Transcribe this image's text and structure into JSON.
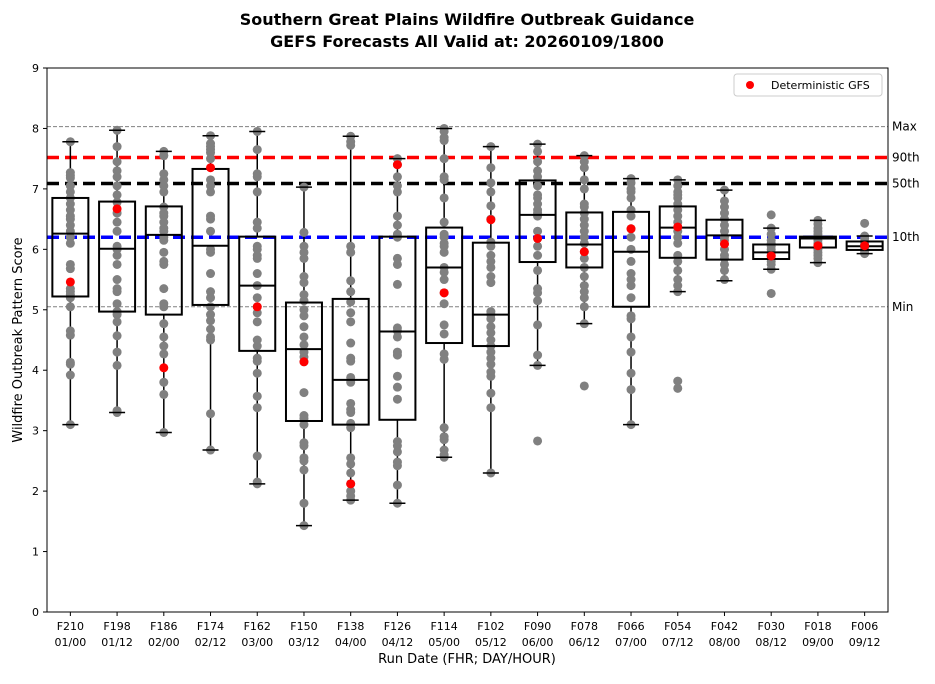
{
  "chart_data": {
    "type": "box",
    "title": "Southern Great Plains Wildfire Outbreak Guidance",
    "subtitle": "GEFS Forecasts All Valid at: 20260109/1800",
    "xlabel": "Run Date (FHR; DAY/HOUR)",
    "ylabel": "Wildfire Outbreak Pattern Score",
    "ylim": [
      0,
      9
    ],
    "yticks": [
      "0",
      "1",
      "2",
      "3",
      "4",
      "5",
      "6",
      "7",
      "8",
      "9"
    ],
    "legend": {
      "position": "top-right",
      "entries": [
        "Deterministic GFS"
      ]
    },
    "reference_lines": [
      {
        "label": "Max",
        "value": 8.03,
        "color": "#808080",
        "style": "thin-dashed"
      },
      {
        "label": "90th",
        "value": 7.52,
        "color": "#ff0000",
        "style": "thick-dashed"
      },
      {
        "label": "50th",
        "value": 7.09,
        "color": "#000000",
        "style": "thick-dashed"
      },
      {
        "label": "10th",
        "value": 6.2,
        "color": "#0000ff",
        "style": "thick-dashed"
      },
      {
        "label": "Min",
        "value": 5.05,
        "color": "#808080",
        "style": "thin-dashed"
      }
    ],
    "colors": {
      "members": "#808080",
      "deterministic": "#ff0000",
      "box": "#000000"
    },
    "categories": [
      {
        "fhr": "F210",
        "day": "01/00",
        "whislo": 3.1,
        "q1": 5.22,
        "med": 6.26,
        "q3": 6.85,
        "whishi": 7.78,
        "det": 5.46,
        "members": [
          7.78,
          7.27,
          7.22,
          7.18,
          7.05,
          6.95,
          6.85,
          6.75,
          6.65,
          6.55,
          6.5,
          6.4,
          6.3,
          6.2,
          6.1,
          5.75,
          5.68,
          5.35,
          5.3,
          5.25,
          5.2,
          5.05,
          4.65,
          4.58,
          4.13,
          4.1,
          3.92,
          3.1
        ]
      },
      {
        "fhr": "F198",
        "day": "01/12",
        "whislo": 3.3,
        "q1": 4.97,
        "med": 6.01,
        "q3": 6.79,
        "whishi": 7.97,
        "det": 6.67,
        "members": [
          7.97,
          7.7,
          7.45,
          7.3,
          7.2,
          7.05,
          6.9,
          6.78,
          6.6,
          6.45,
          6.3,
          6.05,
          6.0,
          5.9,
          5.75,
          5.5,
          5.35,
          5.3,
          5.1,
          4.97,
          4.92,
          4.8,
          4.57,
          4.3,
          4.08,
          3.33,
          3.3
        ]
      },
      {
        "fhr": "F186",
        "day": "02/00",
        "whislo": 2.97,
        "q1": 4.92,
        "med": 6.24,
        "q3": 6.71,
        "whishi": 7.62,
        "det": 4.04,
        "members": [
          7.62,
          7.55,
          7.25,
          7.15,
          7.05,
          6.95,
          6.7,
          6.6,
          6.55,
          6.45,
          6.35,
          6.3,
          6.2,
          6.15,
          5.95,
          5.8,
          5.75,
          5.35,
          5.1,
          5.05,
          4.77,
          4.55,
          4.4,
          4.27,
          3.8,
          3.6,
          2.97
        ]
      },
      {
        "fhr": "F174",
        "day": "02/12",
        "whislo": 2.68,
        "q1": 5.08,
        "med": 6.06,
        "q3": 7.33,
        "whishi": 7.88,
        "det": 7.35,
        "members": [
          7.88,
          7.75,
          7.7,
          7.65,
          7.6,
          7.5,
          7.15,
          7.05,
          6.95,
          6.55,
          6.5,
          6.3,
          6.0,
          5.95,
          5.6,
          5.3,
          5.2,
          5.05,
          4.92,
          4.82,
          4.68,
          4.55,
          4.5,
          3.28,
          2.68
        ]
      },
      {
        "fhr": "F162",
        "day": "03/00",
        "whislo": 2.12,
        "q1": 4.32,
        "med": 5.4,
        "q3": 6.21,
        "whishi": 7.95,
        "det": 5.05,
        "members": [
          7.95,
          7.65,
          7.25,
          7.2,
          6.95,
          6.45,
          6.35,
          6.05,
          6.0,
          5.9,
          5.85,
          5.6,
          5.4,
          5.2,
          5.05,
          4.95,
          4.8,
          4.5,
          4.4,
          4.2,
          4.15,
          3.95,
          3.57,
          3.38,
          2.58,
          2.15,
          2.12
        ]
      },
      {
        "fhr": "F150",
        "day": "03/12",
        "whislo": 1.43,
        "q1": 3.16,
        "med": 4.35,
        "q3": 5.12,
        "whishi": 7.03,
        "det": 4.14,
        "members": [
          7.03,
          6.28,
          6.05,
          5.95,
          5.85,
          5.55,
          5.45,
          5.25,
          5.15,
          5.0,
          4.9,
          4.72,
          4.55,
          4.42,
          4.3,
          4.22,
          4.14,
          3.63,
          3.25,
          3.2,
          3.1,
          2.8,
          2.75,
          2.55,
          2.5,
          2.35,
          1.8,
          1.43
        ]
      },
      {
        "fhr": "F138",
        "day": "04/00",
        "whislo": 1.85,
        "q1": 3.1,
        "med": 3.84,
        "q3": 5.18,
        "whishi": 7.87,
        "det": 2.12,
        "members": [
          7.87,
          7.78,
          7.72,
          6.05,
          5.95,
          5.48,
          5.3,
          5.13,
          4.95,
          4.8,
          4.45,
          4.2,
          4.15,
          3.88,
          3.8,
          3.45,
          3.35,
          3.3,
          3.12,
          3.05,
          2.55,
          2.45,
          2.3,
          2.12,
          2.0,
          1.92,
          1.85
        ]
      },
      {
        "fhr": "F126",
        "day": "04/12",
        "whislo": 1.8,
        "q1": 3.18,
        "med": 4.64,
        "q3": 6.21,
        "whishi": 7.5,
        "det": 7.4,
        "members": [
          7.5,
          7.4,
          7.2,
          7.05,
          6.95,
          6.55,
          6.4,
          6.25,
          6.2,
          5.85,
          5.75,
          5.42,
          4.7,
          4.65,
          4.55,
          4.3,
          4.25,
          3.9,
          3.72,
          3.52,
          2.82,
          2.75,
          2.65,
          2.48,
          2.42,
          2.1,
          1.8
        ]
      },
      {
        "fhr": "F114",
        "day": "05/00",
        "whislo": 2.56,
        "q1": 4.45,
        "med": 5.7,
        "q3": 6.36,
        "whishi": 8.0,
        "det": 5.28,
        "members": [
          8.0,
          7.95,
          7.85,
          7.8,
          7.5,
          7.2,
          7.15,
          6.85,
          6.45,
          6.25,
          6.2,
          6.1,
          6.05,
          5.95,
          5.7,
          5.62,
          5.5,
          5.28,
          5.1,
          4.75,
          4.6,
          4.27,
          4.18,
          3.05,
          2.9,
          2.85,
          2.68,
          2.6,
          2.56
        ]
      },
      {
        "fhr": "F102",
        "day": "05/12",
        "whislo": 2.3,
        "q1": 4.4,
        "med": 4.92,
        "q3": 6.11,
        "whishi": 7.7,
        "det": 6.49,
        "members": [
          7.7,
          7.35,
          7.1,
          6.95,
          6.72,
          6.5,
          6.12,
          6.05,
          5.9,
          5.8,
          5.7,
          5.55,
          5.45,
          4.97,
          4.92,
          4.85,
          4.72,
          4.62,
          4.5,
          4.4,
          4.3,
          4.2,
          4.1,
          3.97,
          3.9,
          3.62,
          3.38,
          2.3
        ]
      },
      {
        "fhr": "F090",
        "day": "06/00",
        "whislo": 4.08,
        "q1": 5.79,
        "med": 6.57,
        "q3": 7.14,
        "whishi": 7.74,
        "det": 6.18,
        "members": [
          7.74,
          7.62,
          7.45,
          7.3,
          7.2,
          7.05,
          6.9,
          6.85,
          6.75,
          6.65,
          6.6,
          6.55,
          6.3,
          6.18,
          6.05,
          5.9,
          5.65,
          5.35,
          5.28,
          5.15,
          4.75,
          4.25,
          4.08,
          2.83
        ]
      },
      {
        "fhr": "F078",
        "day": "06/12",
        "whislo": 4.77,
        "q1": 5.7,
        "med": 6.08,
        "q3": 6.61,
        "whishi": 7.55,
        "det": 5.96,
        "members": [
          7.55,
          7.45,
          7.35,
          7.15,
          7.0,
          6.75,
          6.7,
          6.6,
          6.5,
          6.4,
          6.3,
          6.2,
          6.1,
          5.96,
          5.85,
          5.7,
          5.55,
          5.4,
          5.3,
          5.2,
          5.05,
          4.77,
          3.74
        ]
      },
      {
        "fhr": "F066",
        "day": "07/00",
        "whislo": 3.1,
        "q1": 5.05,
        "med": 5.96,
        "q3": 6.62,
        "whishi": 7.17,
        "det": 6.34,
        "members": [
          7.17,
          7.1,
          7.0,
          6.95,
          6.85,
          6.65,
          6.55,
          6.34,
          6.2,
          6.0,
          5.8,
          5.6,
          5.5,
          5.4,
          5.2,
          4.9,
          4.85,
          4.55,
          4.3,
          3.95,
          3.68,
          3.1
        ]
      },
      {
        "fhr": "F054",
        "day": "07/12",
        "whislo": 5.3,
        "q1": 5.86,
        "med": 6.36,
        "q3": 6.71,
        "whishi": 7.15,
        "det": 6.37,
        "members": [
          7.15,
          7.05,
          6.95,
          6.9,
          6.85,
          6.75,
          6.65,
          6.55,
          6.45,
          6.37,
          6.3,
          6.2,
          6.1,
          5.9,
          5.8,
          5.65,
          5.5,
          5.4,
          5.3,
          3.82,
          3.7
        ]
      },
      {
        "fhr": "F042",
        "day": "08/00",
        "whislo": 5.48,
        "q1": 5.83,
        "med": 6.23,
        "q3": 6.49,
        "whishi": 6.98,
        "det": 6.09,
        "members": [
          6.98,
          6.8,
          6.7,
          6.6,
          6.5,
          6.4,
          6.3,
          6.2,
          6.15,
          6.09,
          6.0,
          5.9,
          5.85,
          5.75,
          5.65,
          5.5
        ]
      },
      {
        "fhr": "F030",
        "day": "08/12",
        "whislo": 5.67,
        "q1": 5.84,
        "med": 5.95,
        "q3": 6.08,
        "whishi": 6.35,
        "det": 5.89,
        "members": [
          6.57,
          6.35,
          6.25,
          6.15,
          6.1,
          6.05,
          6.0,
          5.95,
          5.89,
          5.85,
          5.8,
          5.75,
          5.67,
          5.27
        ]
      },
      {
        "fhr": "F018",
        "day": "09/00",
        "whislo": 5.78,
        "q1": 6.03,
        "med": 6.18,
        "q3": 6.21,
        "whishi": 6.48,
        "det": 6.06,
        "members": [
          6.48,
          6.42,
          6.35,
          6.3,
          6.25,
          6.2,
          6.15,
          6.1,
          6.06,
          6.0,
          5.95,
          5.9,
          5.85,
          5.78
        ]
      },
      {
        "fhr": "F006",
        "day": "09/12",
        "whislo": 5.93,
        "q1": 5.99,
        "med": 6.05,
        "q3": 6.13,
        "whishi": 6.22,
        "det": 6.06,
        "members": [
          6.43,
          6.22,
          6.18,
          6.12,
          6.08,
          6.06,
          6.03,
          6.0,
          5.96,
          5.93
        ]
      }
    ]
  }
}
